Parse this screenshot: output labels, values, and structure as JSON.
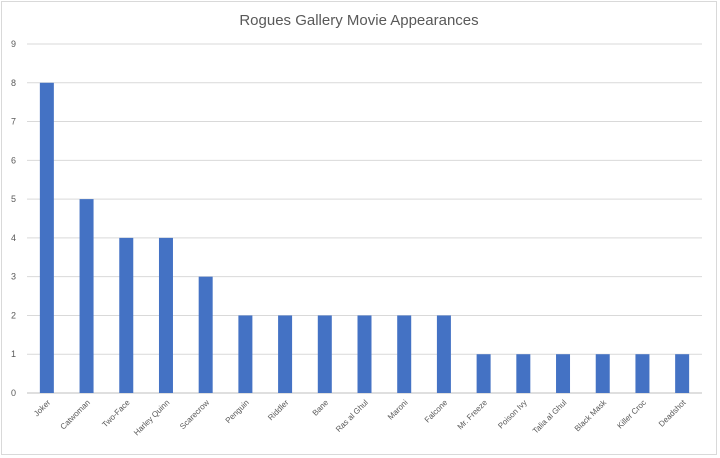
{
  "chart_data": {
    "type": "bar",
    "title": "Rogues Gallery Movie Appearances",
    "xlabel": "",
    "ylabel": "",
    "ylim": [
      0,
      9
    ],
    "yticks": [
      0,
      1,
      2,
      3,
      4,
      5,
      6,
      7,
      8,
      9
    ],
    "grid": true,
    "legend": "none",
    "bar_color": "#4472c4",
    "categories": [
      "Joker",
      "Catwoman",
      "Two-Face",
      "Harley Quinn",
      "Scarecrow",
      "Penguin",
      "Riddler",
      "Bane",
      "Ras al Ghul",
      "Maroni",
      "Falcone",
      "Mr. Freeze",
      "Poison Ivy",
      "Talia al Ghul",
      "Black Mask",
      "Killer Croc",
      "Deadshot"
    ],
    "values": [
      8,
      5,
      4,
      4,
      3,
      2,
      2,
      2,
      2,
      2,
      2,
      1,
      1,
      1,
      1,
      1,
      1
    ]
  }
}
